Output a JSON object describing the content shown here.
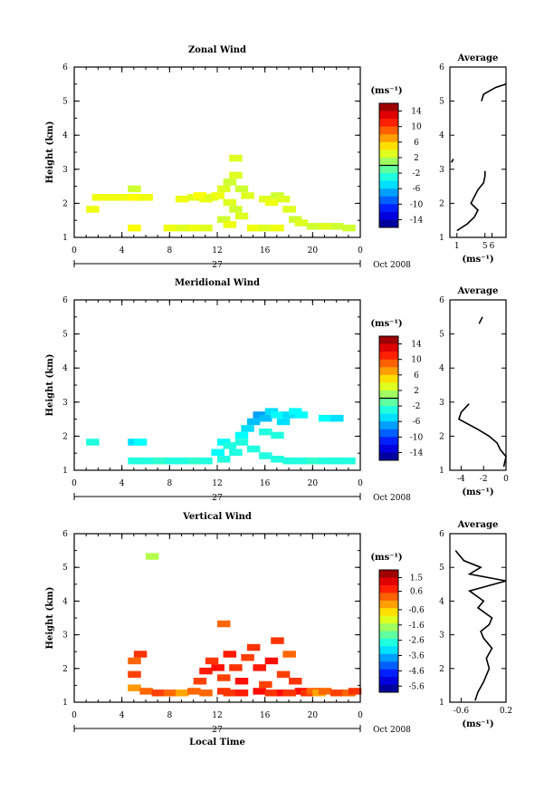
{
  "chart_data": [
    {
      "type": "heatmap",
      "title": "Zonal Wind",
      "ylabel": "Height (km)",
      "unit_label": "(ms⁻¹)",
      "date_label": "Oct 2008",
      "day_label": "27",
      "xlim": [
        0,
        24
      ],
      "ylim": [
        1,
        6
      ],
      "x_ticks": [
        "0",
        "4",
        "8",
        "12",
        "16",
        "20",
        "0"
      ],
      "y_ticks": [
        "1",
        "2",
        "3",
        "4",
        "5",
        "6"
      ],
      "colorbar": {
        "min": -16,
        "max": 16,
        "tick_labels": [
          "14",
          "10",
          "6",
          "2",
          "-2",
          "-6",
          "-10",
          "-14"
        ],
        "tick_values": [
          14,
          10,
          6,
          2,
          -2,
          -6,
          -10,
          -14
        ]
      },
      "cells": [
        [
          2,
          2.15,
          3.5
        ],
        [
          3,
          2.15,
          3.5
        ],
        [
          4,
          2.15,
          3.5
        ],
        [
          5,
          2.15,
          4
        ],
        [
          5,
          2.4,
          2.5
        ],
        [
          1.5,
          1.8,
          3.5
        ],
        [
          5.5,
          2.15,
          4
        ],
        [
          6,
          2.15,
          3.5
        ],
        [
          9,
          2.1,
          3.5
        ],
        [
          10,
          2.15,
          3
        ],
        [
          10.5,
          2.2,
          4
        ],
        [
          11,
          2.1,
          3.5
        ],
        [
          11.5,
          2.15,
          3
        ],
        [
          12,
          2.2,
          3.5
        ],
        [
          12.5,
          2.4,
          3
        ],
        [
          13,
          2.6,
          2.5
        ],
        [
          13.5,
          2.8,
          3
        ],
        [
          14,
          2.4,
          2.5
        ],
        [
          14.5,
          2.2,
          3
        ],
        [
          13,
          2.0,
          3
        ],
        [
          13.5,
          1.8,
          2.5
        ],
        [
          14,
          1.6,
          3
        ],
        [
          12.5,
          1.5,
          2.5
        ],
        [
          13,
          1.35,
          3.5
        ],
        [
          16,
          2.1,
          3
        ],
        [
          16.5,
          2.0,
          3.5
        ],
        [
          17,
          2.2,
          2.5
        ],
        [
          17.5,
          2.1,
          3
        ],
        [
          13.5,
          3.3,
          3
        ],
        [
          18,
          1.8,
          3
        ],
        [
          18.5,
          1.5,
          2.5
        ],
        [
          19,
          1.4,
          3
        ],
        [
          20,
          1.3,
          2.5
        ],
        [
          21,
          1.3,
          3
        ],
        [
          22,
          1.3,
          2.5
        ],
        [
          23,
          1.25,
          2.5
        ],
        [
          5,
          1.25,
          4
        ],
        [
          8,
          1.25,
          3.5
        ],
        [
          9,
          1.25,
          3
        ],
        [
          10,
          1.25,
          3.5
        ],
        [
          11,
          1.25,
          3
        ],
        [
          15,
          1.25,
          3.5
        ],
        [
          16,
          1.25,
          3
        ],
        [
          17,
          1.25,
          3.5
        ]
      ],
      "avg_title": "Average",
      "avg_xlabel": "(ms⁻¹)",
      "avg_xlim": [
        0,
        8
      ],
      "avg_x_ticks": [
        "1",
        "5",
        "6"
      ],
      "avg_x_tick_values": [
        1,
        5,
        6
      ],
      "avg_segments": [
        [
          [
            1.0,
            1.2
          ],
          [
            2.5,
            1.4
          ],
          [
            3.5,
            1.6
          ],
          [
            4.0,
            1.8
          ],
          [
            3.0,
            2.0
          ],
          [
            3.5,
            2.2
          ],
          [
            4.0,
            2.4
          ],
          [
            4.8,
            2.6
          ],
          [
            5.0,
            2.8
          ],
          [
            5.0,
            2.95
          ]
        ],
        [
          [
            0.2,
            3.2
          ],
          [
            0.5,
            3.3
          ]
        ],
        [
          [
            4.5,
            5.0
          ],
          [
            4.8,
            5.2
          ],
          [
            6.5,
            5.4
          ],
          [
            8.0,
            5.5
          ]
        ]
      ]
    },
    {
      "type": "heatmap",
      "title": "Meridional Wind",
      "ylabel": "Height (km)",
      "unit_label": "(ms⁻¹)",
      "date_label": "Oct 2008",
      "day_label": "27",
      "xlim": [
        0,
        24
      ],
      "ylim": [
        1,
        6
      ],
      "x_ticks": [
        "0",
        "4",
        "8",
        "12",
        "16",
        "20",
        "0"
      ],
      "y_ticks": [
        "1",
        "2",
        "3",
        "4",
        "5",
        "6"
      ],
      "colorbar": {
        "min": -16,
        "max": 16,
        "tick_labels": [
          "14",
          "10",
          "6",
          "2",
          "-2",
          "-6",
          "-10",
          "-14"
        ],
        "tick_values": [
          14,
          10,
          6,
          2,
          -2,
          -6,
          -10,
          -14
        ]
      },
      "cells": [
        [
          1.5,
          1.8,
          -3
        ],
        [
          5,
          1.8,
          -5
        ],
        [
          5.5,
          1.8,
          -4
        ],
        [
          12.5,
          1.8,
          -4
        ],
        [
          13,
          1.7,
          -3
        ],
        [
          13.5,
          1.5,
          -3
        ],
        [
          12,
          1.5,
          -4
        ],
        [
          12.5,
          1.3,
          -3
        ],
        [
          11,
          1.25,
          -3
        ],
        [
          10,
          1.25,
          -2.5
        ],
        [
          9,
          1.25,
          -3
        ],
        [
          8,
          1.25,
          -3
        ],
        [
          7,
          1.25,
          -2.5
        ],
        [
          6,
          1.25,
          -3
        ],
        [
          5,
          1.25,
          -3
        ],
        [
          14,
          2.0,
          -4
        ],
        [
          14.5,
          2.2,
          -5
        ],
        [
          15,
          2.4,
          -6
        ],
        [
          15.5,
          2.6,
          -7
        ],
        [
          16,
          2.5,
          -6
        ],
        [
          16.5,
          2.7,
          -5
        ],
        [
          17,
          2.6,
          -4
        ],
        [
          17.5,
          2.4,
          -5
        ],
        [
          18,
          2.6,
          -5
        ],
        [
          18.5,
          2.7,
          -4
        ],
        [
          19,
          2.6,
          -4
        ],
        [
          14,
          1.8,
          -3
        ],
        [
          15,
          1.6,
          -3
        ],
        [
          16,
          1.4,
          -3
        ],
        [
          17,
          1.3,
          -3
        ],
        [
          18,
          1.25,
          -3
        ],
        [
          19,
          1.25,
          -3
        ],
        [
          20,
          1.25,
          -2.5
        ],
        [
          21,
          1.25,
          -3
        ],
        [
          22,
          1.25,
          -3
        ],
        [
          23,
          1.25,
          -3
        ],
        [
          21,
          2.5,
          -4
        ],
        [
          22,
          2.5,
          -5
        ],
        [
          16,
          2.1,
          -3
        ],
        [
          17,
          2.0,
          -3
        ]
      ],
      "avg_title": "Average",
      "avg_xlabel": "(ms⁻¹)",
      "avg_xlim": [
        -5,
        0
      ],
      "avg_x_ticks": [
        "-4",
        "-2",
        "0"
      ],
      "avg_x_tick_values": [
        -4,
        -2,
        0
      ],
      "avg_segments": [
        [
          [
            -0.2,
            1.1
          ],
          [
            0,
            1.4
          ],
          [
            -0.5,
            1.6
          ],
          [
            -0.8,
            1.8
          ],
          [
            -1.5,
            2.0
          ],
          [
            -2.5,
            2.2
          ],
          [
            -4.2,
            2.5
          ],
          [
            -4.0,
            2.7
          ],
          [
            -3.3,
            2.95
          ]
        ],
        [
          [
            -2.4,
            5.3
          ],
          [
            -2.1,
            5.5
          ]
        ]
      ]
    },
    {
      "type": "heatmap",
      "title": "Vertical Wind",
      "ylabel": "Height (km)",
      "xlabel": "Local Time",
      "unit_label": "(ms⁻¹)",
      "date_label": "Oct 2008",
      "day_label": "27",
      "xlim": [
        0,
        24
      ],
      "ylim": [
        1,
        6
      ],
      "x_ticks": [
        "0",
        "4",
        "8",
        "12",
        "16",
        "20",
        "0"
      ],
      "y_ticks": [
        "1",
        "2",
        "3",
        "4",
        "5",
        "6"
      ],
      "colorbar": {
        "min": -6,
        "max": 2,
        "tick_labels": [
          "1.5",
          "0.6",
          "-0.6",
          "-1.6",
          "-2.6",
          "-3.6",
          "-4.6",
          "-5.6"
        ],
        "tick_values": [
          1.5,
          0.6,
          -0.6,
          -1.6,
          -2.6,
          -3.6,
          -4.6,
          -5.6
        ]
      },
      "cells": [
        [
          5,
          2.2,
          0.2
        ],
        [
          5,
          1.8,
          0.5
        ],
        [
          5.5,
          2.4,
          0.6
        ],
        [
          5,
          1.4,
          -0.2
        ],
        [
          6,
          1.3,
          0.2
        ],
        [
          7,
          1.25,
          0.5
        ],
        [
          8,
          1.25,
          0.2
        ],
        [
          9,
          1.25,
          -0.3
        ],
        [
          10,
          1.3,
          0.2
        ],
        [
          10.5,
          1.6,
          0.5
        ],
        [
          11,
          1.9,
          0.8
        ],
        [
          11.5,
          2.2,
          0.6
        ],
        [
          12,
          2.0,
          0.9
        ],
        [
          12.5,
          1.7,
          0.5
        ],
        [
          13,
          2.4,
          0.8
        ],
        [
          13.5,
          2.0,
          0.6
        ],
        [
          14,
          1.6,
          0.9
        ],
        [
          14.5,
          2.3,
          0.5
        ],
        [
          15,
          2.6,
          0.6
        ],
        [
          15.5,
          2.0,
          0.8
        ],
        [
          16,
          1.5,
          0.5
        ],
        [
          16.5,
          2.2,
          0.9
        ],
        [
          17,
          2.8,
          0.6
        ],
        [
          17.5,
          1.8,
          0.5
        ],
        [
          18,
          2.4,
          0.2
        ],
        [
          18.5,
          1.6,
          0.6
        ],
        [
          19,
          1.3,
          0.9
        ],
        [
          19.5,
          1.25,
          0.6
        ],
        [
          20,
          1.3,
          0.2
        ],
        [
          20.5,
          1.25,
          -0.3
        ],
        [
          21,
          1.3,
          0.2
        ],
        [
          22,
          1.25,
          0.5
        ],
        [
          23,
          1.25,
          0.2
        ],
        [
          23.5,
          1.3,
          0.6
        ],
        [
          15.5,
          1.3,
          0.9
        ],
        [
          12.5,
          1.3,
          0.6
        ],
        [
          6.5,
          5.3,
          -1.6
        ],
        [
          12.5,
          3.3,
          0.2
        ],
        [
          13,
          1.25,
          0.6
        ],
        [
          11,
          1.25,
          0.2
        ],
        [
          14,
          1.25,
          0.8
        ],
        [
          16.5,
          1.25,
          0.6
        ],
        [
          17.5,
          1.25,
          0.9
        ],
        [
          18,
          1.25,
          0.6
        ]
      ],
      "avg_title": "Average",
      "avg_xlabel": "(ms⁻¹)",
      "avg_xlim": [
        -0.8,
        0.2
      ],
      "avg_x_ticks": [
        "-0.6",
        "0.2"
      ],
      "avg_x_tick_values": [
        -0.6,
        0.2
      ],
      "avg_segments": [
        [
          [
            -0.35,
            1.05
          ],
          [
            -0.3,
            1.3
          ],
          [
            -0.2,
            1.6
          ],
          [
            -0.1,
            2.0
          ],
          [
            -0.15,
            2.3
          ],
          [
            -0.05,
            2.6
          ],
          [
            -0.2,
            2.9
          ],
          [
            -0.25,
            3.1
          ],
          [
            -0.1,
            3.3
          ],
          [
            -0.05,
            3.5
          ],
          [
            -0.3,
            3.8
          ],
          [
            -0.2,
            4.0
          ],
          [
            -0.45,
            4.3
          ],
          [
            0.2,
            4.6
          ],
          [
            -0.45,
            4.8
          ],
          [
            -0.25,
            5.0
          ],
          [
            -0.55,
            5.2
          ],
          [
            -0.7,
            5.5
          ]
        ]
      ]
    }
  ]
}
